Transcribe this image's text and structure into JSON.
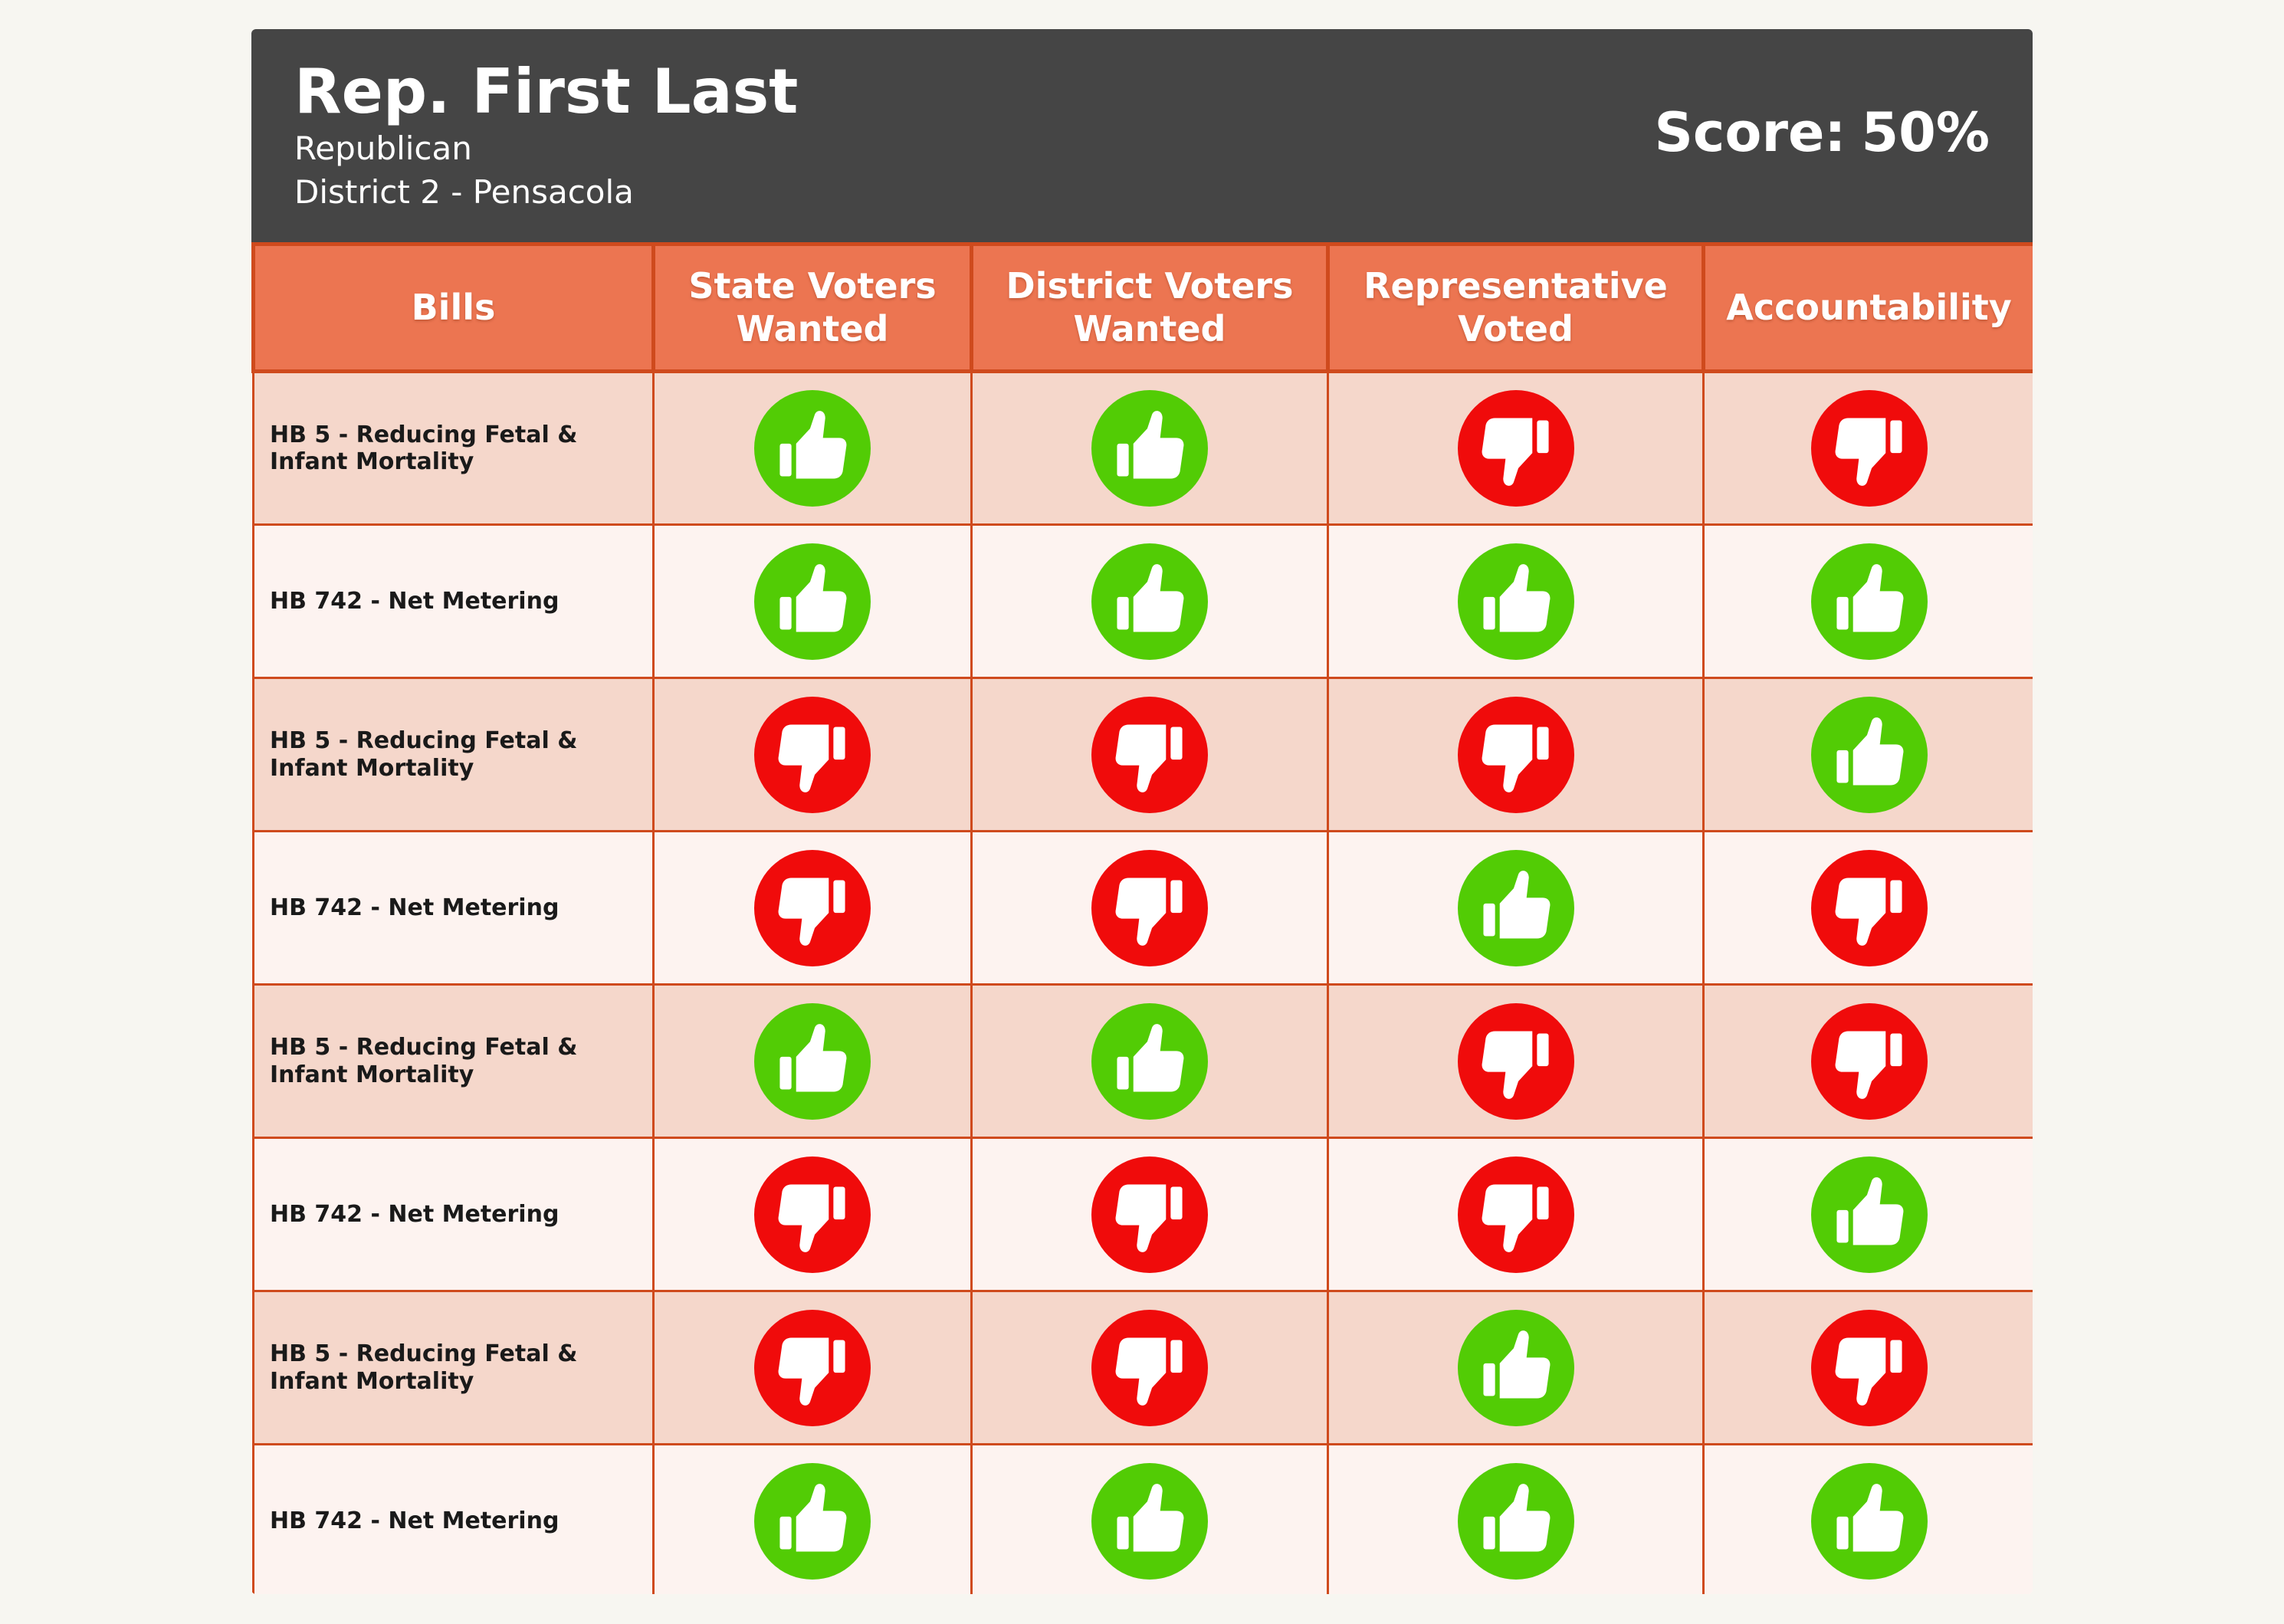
{
  "representative": {
    "name": "Rep. First Last",
    "party": "Republican",
    "district": "District 2 - Pensacola",
    "score_label": "Score:",
    "score_value": "50%"
  },
  "table": {
    "columns": [
      "Bills",
      "State Voters Wanted",
      "District Voters Wanted",
      "Representative Voted",
      "Accountability"
    ],
    "rows": [
      {
        "bill": "HB 5 - Reducing Fetal & Infant Mortality",
        "state": "thumbs-up",
        "district": "thumbs-up",
        "rep": "thumbs-down",
        "accountability": "thumbs-down"
      },
      {
        "bill": "HB 742 - Net Metering",
        "state": "thumbs-up",
        "district": "thumbs-up",
        "rep": "thumbs-up",
        "accountability": "thumbs-up"
      },
      {
        "bill": "HB 5 - Reducing Fetal & Infant Mortality",
        "state": "thumbs-down",
        "district": "thumbs-down",
        "rep": "thumbs-down",
        "accountability": "thumbs-up"
      },
      {
        "bill": "HB 742 - Net Metering",
        "state": "thumbs-down",
        "district": "thumbs-down",
        "rep": "thumbs-up",
        "accountability": "thumbs-down"
      },
      {
        "bill": "HB 5 - Reducing Fetal & Infant Mortality",
        "state": "thumbs-up",
        "district": "thumbs-up",
        "rep": "thumbs-down",
        "accountability": "thumbs-down"
      },
      {
        "bill": "HB 742 - Net Metering",
        "state": "thumbs-down",
        "district": "thumbs-down",
        "rep": "thumbs-down",
        "accountability": "thumbs-up"
      },
      {
        "bill": "HB 5 - Reducing Fetal & Infant Mortality",
        "state": "thumbs-down",
        "district": "thumbs-down",
        "rep": "thumbs-up",
        "accountability": "thumbs-down"
      },
      {
        "bill": "HB 742 - Net Metering",
        "state": "thumbs-up",
        "district": "thumbs-up",
        "rep": "thumbs-up",
        "accountability": "thumbs-up"
      }
    ]
  },
  "colors": {
    "header_bg": "#454545",
    "column_header_bg": "#ec7551",
    "border": "#cf4a1d",
    "row_shaded": "#f5d7cb",
    "row_light": "#fdf3f0",
    "thumbs_up": "#52cc05",
    "thumbs_down": "#f00b0b"
  }
}
